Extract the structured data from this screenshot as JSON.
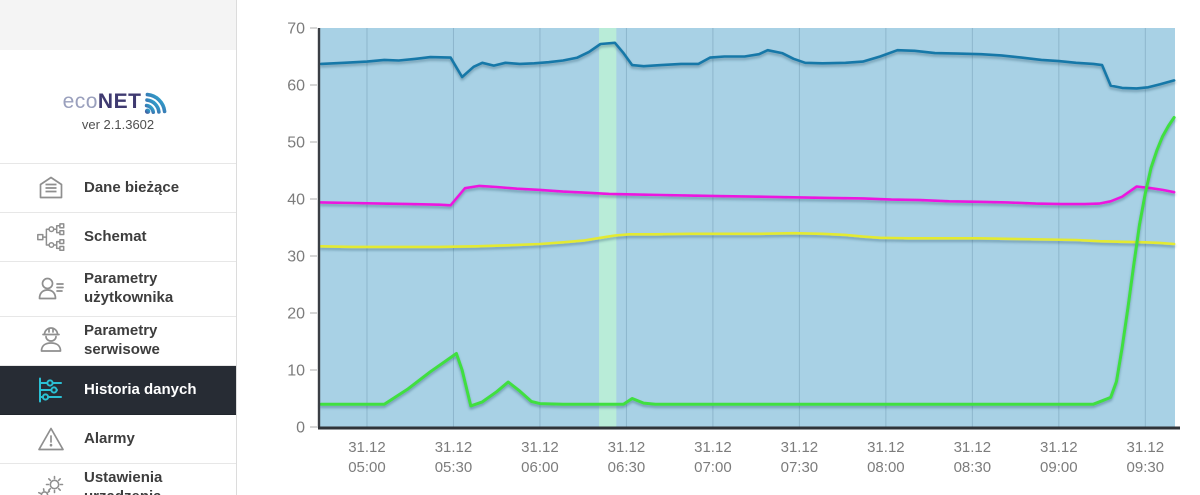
{
  "sidebar": {
    "logo": {
      "eco": "eco",
      "net": "NET",
      "version": "ver 2.1.3602"
    },
    "items": [
      {
        "slug": "dane-biezace",
        "label": "Dane bieżące",
        "icon": "current-data-icon",
        "selected": false
      },
      {
        "slug": "schemat",
        "label": "Schemat",
        "icon": "schema-icon",
        "selected": false
      },
      {
        "slug": "parametry-uzytkownika",
        "label": "Parametry użytkownika",
        "icon": "user-params-icon",
        "selected": false
      },
      {
        "slug": "parametry-serwisowe",
        "label": "Parametry serwisowe",
        "icon": "service-params-icon",
        "selected": false
      },
      {
        "slug": "historia-danych",
        "label": "Historia danych",
        "icon": "data-history-icon",
        "selected": true
      },
      {
        "slug": "alarmy",
        "label": "Alarmy",
        "icon": "alarm-icon",
        "selected": false
      },
      {
        "slug": "ustawienia-urzadzenia",
        "label": "Ustawienia urządzenia",
        "icon": "device-settings-icon",
        "selected": false
      }
    ],
    "colors": {
      "selected_bg": "#272c34",
      "selected_icon": "#2bc0d4",
      "icon_gray": "#8f8f8f"
    }
  },
  "chart_data": {
    "type": "line",
    "title": "",
    "xlabel": "",
    "ylabel": "",
    "grid": "vertical",
    "legend": "none",
    "background": "#a8d1e5",
    "grid_color": "#8db6cc",
    "ylim": [
      0,
      70
    ],
    "y_ticks": [
      0,
      10,
      20,
      30,
      40,
      50,
      60,
      70
    ],
    "x_range_minutes": [
      283.7,
      580.3
    ],
    "x_ticks": [
      {
        "date": "31.12",
        "time": "05:00",
        "t": 300
      },
      {
        "date": "31.12",
        "time": "05:30",
        "t": 330
      },
      {
        "date": "31.12",
        "time": "06:00",
        "t": 360
      },
      {
        "date": "31.12",
        "time": "06:30",
        "t": 390
      },
      {
        "date": "31.12",
        "time": "07:00",
        "t": 420
      },
      {
        "date": "31.12",
        "time": "07:30",
        "t": 450
      },
      {
        "date": "31.12",
        "time": "08:00",
        "t": 480
      },
      {
        "date": "31.12",
        "time": "08:30",
        "t": 510
      },
      {
        "date": "31.12",
        "time": "09:00",
        "t": 540
      },
      {
        "date": "31.12",
        "time": "09:30",
        "t": 570
      }
    ],
    "plot_band": {
      "from_t": 380.5,
      "to_t": 386.5,
      "color": "#b9ecd8"
    },
    "series": [
      {
        "name": "blue",
        "color": "#1878a8",
        "width": 2.6,
        "points": [
          [
            284,
            63.7
          ],
          [
            292,
            63.9
          ],
          [
            300,
            64.1
          ],
          [
            306,
            64.4
          ],
          [
            311,
            64.3
          ],
          [
            317,
            64.6
          ],
          [
            322,
            64.9
          ],
          [
            329,
            64.8
          ],
          [
            333,
            61.4
          ],
          [
            337,
            63.2
          ],
          [
            340,
            63.9
          ],
          [
            344,
            63.4
          ],
          [
            348,
            63.9
          ],
          [
            353,
            63.7
          ],
          [
            358,
            63.8
          ],
          [
            363,
            64.0
          ],
          [
            368,
            64.3
          ],
          [
            373,
            64.8
          ],
          [
            377,
            65.8
          ],
          [
            381,
            67.2
          ],
          [
            386,
            67.4
          ],
          [
            389,
            65.6
          ],
          [
            392,
            63.5
          ],
          [
            396,
            63.3
          ],
          [
            402,
            63.5
          ],
          [
            409,
            63.7
          ],
          [
            415,
            63.7
          ],
          [
            419,
            64.8
          ],
          [
            424,
            65.0
          ],
          [
            431,
            65.0
          ],
          [
            436,
            65.4
          ],
          [
            439,
            66.1
          ],
          [
            444,
            65.6
          ],
          [
            448,
            64.6
          ],
          [
            452,
            63.9
          ],
          [
            458,
            63.8
          ],
          [
            466,
            63.9
          ],
          [
            472,
            64.1
          ],
          [
            478,
            65.0
          ],
          [
            484,
            66.1
          ],
          [
            490,
            66.0
          ],
          [
            497,
            65.6
          ],
          [
            505,
            65.5
          ],
          [
            513,
            65.4
          ],
          [
            520,
            65.2
          ],
          [
            527,
            64.8
          ],
          [
            534,
            64.4
          ],
          [
            540,
            64.2
          ],
          [
            546,
            63.9
          ],
          [
            552,
            63.7
          ],
          [
            555,
            63.5
          ],
          [
            558,
            59.9
          ],
          [
            562,
            59.5
          ],
          [
            567,
            59.4
          ],
          [
            571,
            59.6
          ],
          [
            575,
            60.1
          ],
          [
            580,
            60.8
          ]
        ]
      },
      {
        "name": "magenta",
        "color": "#ec14df",
        "width": 2.6,
        "points": [
          [
            284,
            39.4
          ],
          [
            295,
            39.3
          ],
          [
            305,
            39.2
          ],
          [
            315,
            39.1
          ],
          [
            325,
            39.0
          ],
          [
            329,
            38.9
          ],
          [
            334,
            41.9
          ],
          [
            339,
            42.3
          ],
          [
            345,
            42.1
          ],
          [
            352,
            41.8
          ],
          [
            360,
            41.6
          ],
          [
            368,
            41.3
          ],
          [
            376,
            41.1
          ],
          [
            384,
            40.9
          ],
          [
            392,
            40.8
          ],
          [
            402,
            40.7
          ],
          [
            412,
            40.6
          ],
          [
            424,
            40.5
          ],
          [
            436,
            40.4
          ],
          [
            448,
            40.3
          ],
          [
            460,
            40.2
          ],
          [
            472,
            40.1
          ],
          [
            482,
            39.9
          ],
          [
            492,
            39.8
          ],
          [
            502,
            39.6
          ],
          [
            512,
            39.5
          ],
          [
            522,
            39.4
          ],
          [
            532,
            39.2
          ],
          [
            541,
            39.1
          ],
          [
            549,
            39.1
          ],
          [
            554,
            39.2
          ],
          [
            558,
            39.6
          ],
          [
            562,
            40.4
          ],
          [
            567,
            42.2
          ],
          [
            572,
            41.9
          ],
          [
            576,
            41.6
          ],
          [
            580,
            41.2
          ]
        ]
      },
      {
        "name": "yellow",
        "color": "#e3ea33",
        "width": 2.6,
        "points": [
          [
            284,
            31.7
          ],
          [
            295,
            31.6
          ],
          [
            310,
            31.6
          ],
          [
            325,
            31.6
          ],
          [
            338,
            31.7
          ],
          [
            350,
            31.9
          ],
          [
            360,
            32.1
          ],
          [
            368,
            32.4
          ],
          [
            375,
            32.7
          ],
          [
            381,
            33.2
          ],
          [
            386,
            33.6
          ],
          [
            391,
            33.8
          ],
          [
            400,
            33.8
          ],
          [
            412,
            33.9
          ],
          [
            424,
            33.9
          ],
          [
            436,
            33.9
          ],
          [
            448,
            34.0
          ],
          [
            458,
            33.9
          ],
          [
            466,
            33.7
          ],
          [
            472,
            33.4
          ],
          [
            478,
            33.2
          ],
          [
            488,
            33.1
          ],
          [
            500,
            33.1
          ],
          [
            512,
            33.1
          ],
          [
            524,
            33.0
          ],
          [
            536,
            32.9
          ],
          [
            546,
            32.8
          ],
          [
            554,
            32.6
          ],
          [
            562,
            32.5
          ],
          [
            570,
            32.4
          ],
          [
            575,
            32.3
          ],
          [
            580,
            32.1
          ]
        ]
      },
      {
        "name": "green",
        "color": "#3fdf3f",
        "width": 3.0,
        "points": [
          [
            284,
            4.0
          ],
          [
            295,
            4.0
          ],
          [
            306,
            4.0
          ],
          [
            314,
            6.6
          ],
          [
            322,
            9.7
          ],
          [
            331,
            12.9
          ],
          [
            333,
            10.0
          ],
          [
            336,
            3.7
          ],
          [
            340,
            4.4
          ],
          [
            345,
            6.2
          ],
          [
            349,
            7.9
          ],
          [
            353,
            6.3
          ],
          [
            357,
            4.5
          ],
          [
            360,
            4.1
          ],
          [
            368,
            4.0
          ],
          [
            380,
            4.0
          ],
          [
            389,
            4.0
          ],
          [
            392,
            5.0
          ],
          [
            396,
            4.2
          ],
          [
            400,
            4.0
          ],
          [
            415,
            4.0
          ],
          [
            430,
            4.0
          ],
          [
            450,
            4.0
          ],
          [
            470,
            4.0
          ],
          [
            490,
            4.0
          ],
          [
            510,
            4.0
          ],
          [
            530,
            4.0
          ],
          [
            545,
            4.0
          ],
          [
            552,
            4.0
          ],
          [
            555,
            4.6
          ],
          [
            558,
            5.2
          ],
          [
            560,
            8.0
          ],
          [
            562,
            14.0
          ],
          [
            564,
            21.0
          ],
          [
            566,
            28.5
          ],
          [
            568,
            35.5
          ],
          [
            570,
            41.0
          ],
          [
            572,
            45.5
          ],
          [
            574,
            48.5
          ],
          [
            576,
            51.0
          ],
          [
            578,
            52.8
          ],
          [
            580,
            54.3
          ]
        ]
      }
    ],
    "axis_text_color": "#7c7c7c",
    "axis_line_color": "#3a3e44"
  }
}
